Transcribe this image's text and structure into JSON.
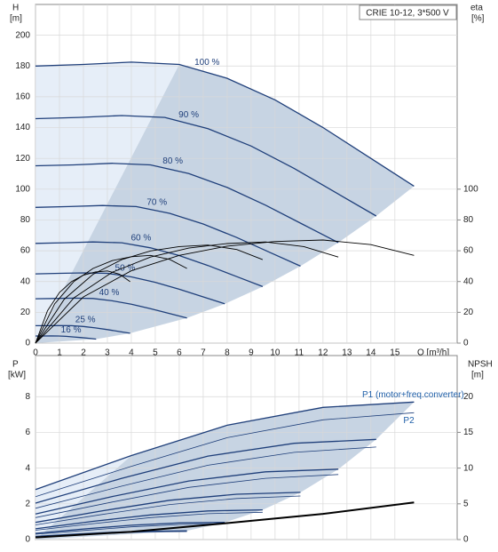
{
  "chart_data": [
    {
      "type": "line",
      "model_label": "CRIE 10-12, 3*500 V",
      "x_label": "Q [m³/h]",
      "y_label": "H",
      "y_unit": "[m]",
      "y2_label": "eta",
      "y2_unit": "[%]",
      "xlim": [
        0,
        17.6
      ],
      "xticks": [
        0,
        1,
        2,
        3,
        4,
        5,
        6,
        7,
        8,
        9,
        10,
        11,
        12,
        13,
        14,
        15
      ],
      "ylim": [
        0,
        220
      ],
      "yticks": [
        0,
        20,
        40,
        60,
        80,
        100,
        120,
        140,
        160,
        180,
        200
      ],
      "y2lim": [
        0,
        220
      ],
      "y2ticks": [
        0,
        20,
        40,
        60,
        80,
        100
      ],
      "grid": true,
      "series": [
        {
          "name": "100 %",
          "color": "#1f3f7a",
          "x": [
            0,
            2,
            4,
            6,
            8,
            10,
            12,
            14,
            15.8
          ],
          "values": [
            180,
            181,
            182.5,
            181,
            172,
            158,
            140,
            120,
            102
          ]
        },
        {
          "name": "90 %",
          "color": "#1f3f7a",
          "x": [
            0,
            1.8,
            3.6,
            5.4,
            7.2,
            9,
            10.8,
            12.6,
            14.22
          ],
          "values": [
            145.8,
            146.6,
            147.8,
            146.6,
            139.3,
            128,
            113.4,
            97.2,
            82.6
          ]
        },
        {
          "name": "80 %",
          "color": "#1f3f7a",
          "x": [
            0,
            1.6,
            3.2,
            4.8,
            6.4,
            8,
            9.6,
            11.2,
            12.64
          ],
          "values": [
            115.2,
            115.8,
            116.8,
            115.8,
            110.1,
            101.1,
            89.6,
            76.8,
            65.3
          ]
        },
        {
          "name": "70 %",
          "color": "#1f3f7a",
          "x": [
            0,
            1.4,
            2.8,
            4.2,
            5.6,
            7,
            8.4,
            9.8,
            11.06
          ],
          "values": [
            88.2,
            88.7,
            89.4,
            88.7,
            84.3,
            77.4,
            68.6,
            58.8,
            50
          ]
        },
        {
          "name": "60 %",
          "color": "#1f3f7a",
          "x": [
            0,
            1.2,
            2.4,
            3.6,
            4.8,
            6,
            7.2,
            8.4,
            9.48
          ],
          "values": [
            64.8,
            65.2,
            65.7,
            65.2,
            61.9,
            56.9,
            50.4,
            43.2,
            36.7
          ]
        },
        {
          "name": "50 %",
          "color": "#1f3f7a",
          "x": [
            0,
            1,
            2,
            3,
            4,
            5,
            6,
            7,
            7.9
          ],
          "values": [
            45,
            45.3,
            45.6,
            45.3,
            43,
            39.5,
            35,
            30,
            25.5
          ]
        },
        {
          "name": "40 %",
          "color": "#1f3f7a",
          "x": [
            0,
            0.8,
            1.6,
            2.4,
            3.2,
            4,
            4.8,
            5.6,
            6.32
          ],
          "values": [
            28.8,
            29,
            29.2,
            29,
            27.5,
            25.3,
            22.4,
            19.2,
            16.3
          ]
        },
        {
          "name": "25 %",
          "color": "#1f3f7a",
          "x": [
            0,
            0.5,
            1,
            1.5,
            2,
            2.5,
            3,
            3.5,
            3.95
          ],
          "values": [
            11.3,
            11.3,
            11.4,
            11.3,
            10.8,
            9.9,
            8.8,
            7.5,
            6.4
          ]
        },
        {
          "name": "16 %",
          "color": "#1f3f7a",
          "x": [
            0,
            0.32,
            0.64,
            0.96,
            1.28,
            1.6,
            1.92,
            2.24,
            2.53
          ],
          "values": [
            4.6,
            4.6,
            4.7,
            4.6,
            4.4,
            4,
            3.6,
            3.1,
            2.6
          ]
        },
        {
          "color": "#000000",
          "axis": "y2",
          "x": [
            0,
            2,
            4,
            6,
            8,
            10,
            12,
            14,
            15.8
          ],
          "values": [
            0,
            30,
            47,
            57,
            63,
            66,
            67,
            64,
            57
          ]
        },
        {
          "color": "#000000",
          "axis": "y2",
          "x": [
            0,
            1.6,
            3.2,
            4.8,
            6.4,
            8,
            9.6,
            11.2,
            12.64
          ],
          "values": [
            0,
            29.4,
            46,
            55.9,
            61.7,
            64.7,
            65.7,
            62.7,
            55.9
          ]
        },
        {
          "color": "#000000",
          "axis": "y2",
          "x": [
            0,
            1.2,
            2.4,
            3.6,
            4.8,
            6,
            7.2,
            8.4,
            9.48
          ],
          "values": [
            0,
            28.5,
            44.7,
            54.2,
            59.9,
            62.7,
            63.7,
            60.8,
            54.2
          ]
        },
        {
          "color": "#000000",
          "axis": "y2",
          "x": [
            0,
            0.8,
            1.6,
            2.4,
            3.2,
            4,
            4.8,
            5.6,
            6.32
          ],
          "values": [
            0,
            25.5,
            40,
            48.5,
            53.6,
            56.1,
            57,
            54.4,
            48.5
          ]
        },
        {
          "color": "#000000",
          "axis": "y2",
          "x": [
            0,
            0.5,
            1,
            1.5,
            2,
            2.5,
            3,
            3.5,
            3.95
          ],
          "values": [
            0,
            21,
            32.9,
            39.9,
            44.1,
            46.2,
            46.9,
            44.8,
            39.9
          ]
        }
      ]
    },
    {
      "type": "line",
      "y_label": "P",
      "y_unit": "[kW]",
      "y2_label": "NPSH",
      "y2_unit": "[m]",
      "xlim": [
        0,
        17.6
      ],
      "ylim": [
        0,
        10.3
      ],
      "yticks": [
        0,
        2,
        4,
        6,
        8
      ],
      "y2lim": [
        0,
        25.75
      ],
      "y2ticks": [
        0,
        5,
        10,
        15,
        20
      ],
      "grid": true,
      "series": [
        {
          "name": "P1 (motor+freq.converter)",
          "color": "#1f3f7a",
          "x": [
            0,
            4,
            8,
            12,
            15.8
          ],
          "values": [
            2.8,
            4.7,
            6.4,
            7.4,
            7.7
          ]
        },
        {
          "name": "P2",
          "color": "#1f3f7a",
          "x": [
            0,
            4,
            8,
            12,
            15.8
          ],
          "values": [
            2.4,
            4.1,
            5.7,
            6.7,
            7.1
          ]
        },
        {
          "color": "#1f3f7a",
          "x": [
            0,
            3.6,
            7.2,
            10.8,
            14.22
          ],
          "values": [
            2.04,
            3.43,
            4.67,
            5.39,
            5.61
          ]
        },
        {
          "color": "#1f3f7a",
          "x": [
            0,
            3.6,
            7.2,
            10.8,
            14.22
          ],
          "values": [
            1.75,
            2.99,
            4.16,
            4.88,
            5.18
          ]
        },
        {
          "color": "#1f3f7a",
          "x": [
            0,
            3.2,
            6.4,
            9.6,
            12.64
          ],
          "values": [
            1.43,
            2.41,
            3.28,
            3.79,
            3.94
          ]
        },
        {
          "color": "#1f3f7a",
          "x": [
            0,
            3.2,
            6.4,
            9.6,
            12.64
          ],
          "values": [
            1.23,
            2.1,
            2.92,
            3.43,
            3.64
          ]
        },
        {
          "color": "#1f3f7a",
          "x": [
            0,
            2.8,
            5.6,
            8.4,
            11.06
          ],
          "values": [
            0.96,
            1.61,
            2.2,
            2.54,
            2.64
          ]
        },
        {
          "color": "#1f3f7a",
          "x": [
            0,
            2.8,
            5.6,
            8.4,
            11.06
          ],
          "values": [
            0.82,
            1.41,
            1.96,
            2.3,
            2.44
          ]
        },
        {
          "color": "#1f3f7a",
          "x": [
            0,
            2.4,
            4.8,
            7.2,
            9.48
          ],
          "values": [
            0.6,
            1.02,
            1.38,
            1.6,
            1.66
          ]
        },
        {
          "color": "#1f3f7a",
          "x": [
            0,
            2.4,
            4.8,
            7.2,
            9.48
          ],
          "values": [
            0.52,
            0.89,
            1.23,
            1.45,
            1.53
          ]
        },
        {
          "color": "#1f3f7a",
          "x": [
            0,
            2,
            4,
            6,
            7.9
          ],
          "values": [
            0.35,
            0.59,
            0.8,
            0.93,
            0.96
          ]
        },
        {
          "color": "#1f3f7a",
          "x": [
            0,
            2,
            4,
            6,
            7.9
          ],
          "values": [
            0.3,
            0.51,
            0.71,
            0.84,
            0.89
          ]
        },
        {
          "color": "#1f3f7a",
          "x": [
            0,
            1.6,
            3.2,
            4.8,
            6.32
          ],
          "values": [
            0.18,
            0.3,
            0.41,
            0.47,
            0.49
          ]
        },
        {
          "color": "#1f3f7a",
          "x": [
            0,
            1.6,
            3.2,
            4.8,
            6.32
          ],
          "values": [
            0.15,
            0.26,
            0.36,
            0.43,
            0.45
          ]
        },
        {
          "color": "#000000",
          "axis": "y2",
          "x": [
            0,
            4,
            8,
            12,
            15.8
          ],
          "values": [
            0.3,
            1.1,
            2.3,
            3.6,
            5.2
          ]
        }
      ]
    }
  ]
}
